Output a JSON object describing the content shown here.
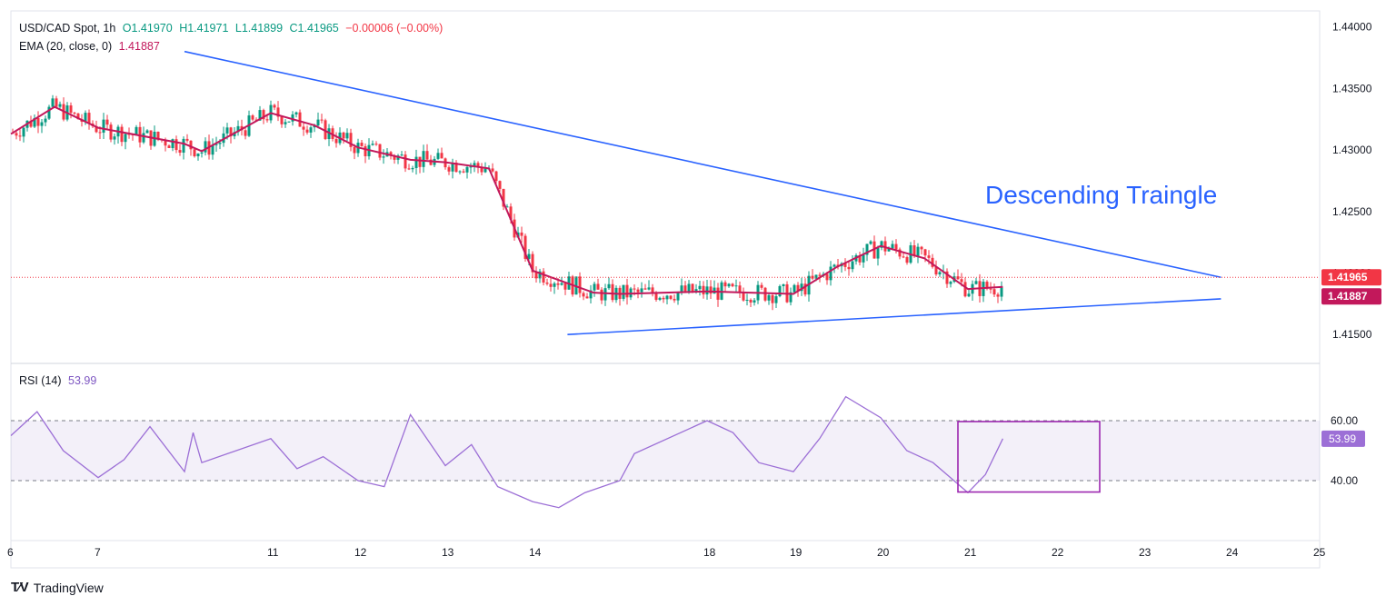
{
  "header": {
    "symbol": "USD/CAD Spot, 1h",
    "open": "O1.41970",
    "high": "H1.41971",
    "low": "L1.41899",
    "close": "C1.41965",
    "change": "−0.00006 (−0.00%)",
    "ema_label": "EMA (20, close, 0)",
    "ema_value": "1.41887",
    "rsi_label": "RSI (14)",
    "rsi_value": "53.99"
  },
  "annotation": "Descending Traingle",
  "footer": {
    "brand": "TradingView"
  },
  "colors": {
    "up": "#089981",
    "down": "#f23645",
    "ema": "#c2185b",
    "trendline": "#2962ff",
    "rsi": "#9c6fd6",
    "box": "#9c27b0"
  },
  "chart_data": [
    {
      "type": "candlestick",
      "interval": "1h",
      "title": "USD/CAD Spot, 1h",
      "price_axis": {
        "ticks": [
          1.44,
          1.435,
          1.43,
          1.425,
          1.42,
          1.415
        ],
        "tick_labels": [
          "1.44000",
          "1.43500",
          "1.43000",
          "1.42500",
          "1.42000",
          "1.41500"
        ],
        "range": [
          1.4128,
          1.4413
        ]
      },
      "time_axis": {
        "labels": [
          "6",
          "7",
          "11",
          "12",
          "13",
          "14",
          "18",
          "19",
          "20",
          "21",
          "22",
          "23",
          "24",
          "25"
        ]
      },
      "price_labels": {
        "last": "1.41965",
        "ema": "1.41887"
      },
      "ema_series": {
        "name": "EMA (20, close, 0)",
        "points": [
          [
            "6",
            1.4313
          ],
          [
            "6.5",
            1.4335
          ],
          [
            "7",
            1.4318
          ],
          [
            "8",
            1.4305
          ],
          [
            "8.6",
            1.4299
          ],
          [
            "11",
            1.433
          ],
          [
            "11.5",
            1.432
          ],
          [
            "12",
            1.4302
          ],
          [
            "12.6",
            1.4292
          ],
          [
            "13",
            1.429
          ],
          [
            "13.5",
            1.4285
          ],
          [
            "14",
            1.4202
          ],
          [
            "14.7",
            1.4184
          ],
          [
            "15",
            1.4183
          ],
          [
            "18",
            1.4185
          ],
          [
            "18.5",
            1.4184
          ],
          [
            "19",
            1.4183
          ],
          [
            "19.5",
            1.4205
          ],
          [
            "20",
            1.4222
          ],
          [
            "20.5",
            1.4212
          ],
          [
            "21",
            1.4187
          ],
          [
            "21.4",
            1.41887
          ]
        ]
      },
      "trendlines": [
        {
          "name": "resistance",
          "from": [
            "8",
            1.438
          ],
          "to": [
            "23.9",
            1.41965
          ]
        },
        {
          "name": "support",
          "from": [
            "14.4",
            1.415
          ],
          "to": [
            "23.9",
            1.4179
          ]
        }
      ],
      "annotation": "Descending Traingle"
    },
    {
      "type": "line",
      "title": "RSI (14)",
      "y_ticks": [
        60,
        40
      ],
      "y_tick_labels": [
        "60.00",
        "40.00"
      ],
      "band": [
        40,
        60
      ],
      "last_value": 53.99,
      "x": [
        "6",
        "6.3",
        "6.6",
        "7",
        "7.3",
        "7.6",
        "8",
        "8.3",
        "8.6",
        "11",
        "11.3",
        "11.6",
        "12",
        "12.3",
        "12.6",
        "13",
        "13.3",
        "13.6",
        "14",
        "14.3",
        "14.6",
        "15",
        "15.5",
        "18",
        "18.3",
        "18.6",
        "19",
        "19.3",
        "19.6",
        "20",
        "20.3",
        "20.6",
        "21",
        "21.2",
        "21.4"
      ],
      "values": [
        55,
        63,
        50,
        41,
        47,
        58,
        43,
        56,
        46,
        54,
        44,
        48,
        40,
        38,
        62,
        45,
        52,
        38,
        33,
        31,
        36,
        40,
        49,
        60,
        56,
        46,
        43,
        54,
        68,
        61,
        50,
        46,
        36,
        42,
        53.99
      ]
    }
  ]
}
